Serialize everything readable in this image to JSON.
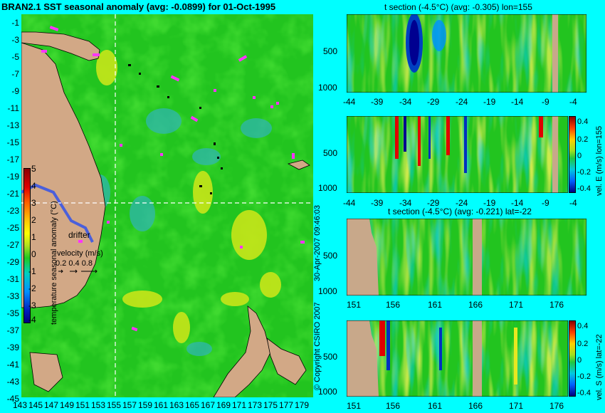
{
  "main": {
    "title": "BRAN2.1 SST seasonal anomaly (avg: -0.0899) for 01-Oct-1995",
    "y_ticks": [
      "-1",
      "-3",
      "-5",
      "-7",
      "-9",
      "-11",
      "-13",
      "-15",
      "-17",
      "-19",
      "-21",
      "-23",
      "-25",
      "-27",
      "-29",
      "-31",
      "-33",
      "-35",
      "-37",
      "-39",
      "-41",
      "-43",
      "-45"
    ],
    "x_ticks": [
      "143",
      "145",
      "147",
      "149",
      "151",
      "153",
      "155",
      "157",
      "159",
      "161",
      "163",
      "165",
      "167",
      "169",
      "171",
      "173",
      "175",
      "177",
      "179"
    ],
    "colorbar": {
      "label": "temperature seasonal anomaly (°C)",
      "ticks": [
        "5",
        "4",
        "3",
        "2",
        "1",
        "0",
        "-1",
        "-2",
        "-3",
        "-4"
      ]
    },
    "drifter_label": "drifter",
    "velocity_label": "velocity (m/s)",
    "velocity_values": "0.2 0.4 0.8",
    "side_note_date": "30-Apr-2007 09:46:03",
    "side_note_copyright": "© Copyright CSIRO 2007"
  },
  "panels": [
    {
      "title": "t section (-4.5°C) (avg: -0.305) lon=155",
      "x_ticks": [
        "-44",
        "-39",
        "-34",
        "-29",
        "-24",
        "-19",
        "-14",
        "-9",
        "-4"
      ],
      "y_ticks": [
        "500",
        "1000"
      ],
      "side_label": ""
    },
    {
      "title": "",
      "x_ticks": [
        "-44",
        "-39",
        "-34",
        "-29",
        "-24",
        "-19",
        "-14",
        "-9",
        "-4"
      ],
      "y_ticks": [
        "500",
        "1000"
      ],
      "side_label": "vel. E (m/s) lon=155",
      "cb_ticks": [
        "0.4",
        "0.2",
        "0",
        "-0.2",
        "-0.4"
      ]
    },
    {
      "title": "t section (-4.5°C) (avg: -0.221) lat=-22",
      "x_ticks": [
        "151",
        "156",
        "161",
        "166",
        "171",
        "176"
      ],
      "y_ticks": [
        "500",
        "1000"
      ],
      "side_label": ""
    },
    {
      "title": "",
      "x_ticks": [
        "151",
        "156",
        "161",
        "166",
        "171",
        "176"
      ],
      "y_ticks": [
        "500",
        "1000"
      ],
      "side_label": "vel. S (m/s) lat=-22",
      "cb_ticks": [
        "0.4",
        "0.2",
        "0",
        "-0.2",
        "-0.4"
      ]
    }
  ],
  "chart_data": {
    "type": "heatmap",
    "main_map": {
      "x_range": [
        143,
        179
      ],
      "y_range": [
        -45,
        -1
      ],
      "colorbar_range": [
        -4,
        5
      ]
    },
    "sections": [
      {
        "x_range": [
          -44,
          -1
        ],
        "depth_range": [
          0,
          1000
        ]
      },
      {
        "x_range": [
          -44,
          -1
        ],
        "depth_range": [
          0,
          1000
        ],
        "colorbar_range": [
          -0.4,
          0.4
        ]
      },
      {
        "x_range": [
          151,
          179
        ],
        "depth_range": [
          0,
          1000
        ]
      },
      {
        "x_range": [
          151,
          179
        ],
        "depth_range": [
          0,
          1000
        ],
        "colorbar_range": [
          -0.4,
          0.4
        ]
      }
    ]
  },
  "colors": {
    "background": "#00ffff",
    "field": "#1fc81f",
    "land": "#d2a886",
    "cold": "#00aaff",
    "warm": "#c8e619"
  }
}
